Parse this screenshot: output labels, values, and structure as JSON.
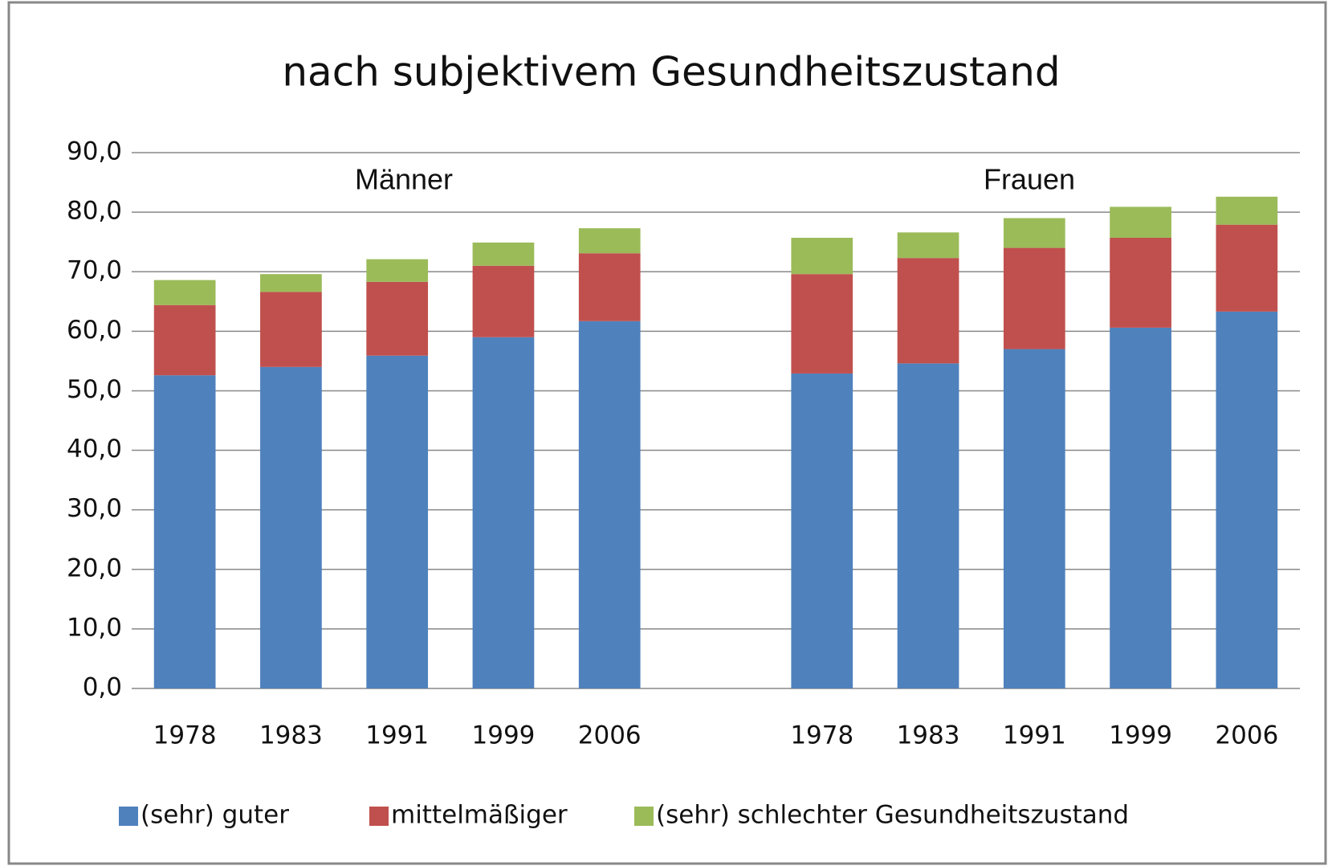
{
  "chart_data": {
    "type": "stacked_bar",
    "title": "nach subjektivem Gesundheitszustand",
    "annotations": [
      "Männer",
      "Frauen"
    ],
    "categories": [
      "1978",
      "1983",
      "1991",
      "1999",
      "2006",
      null,
      "1978",
      "1983",
      "1991",
      "1999",
      "2006"
    ],
    "series": [
      {
        "name": "(sehr) guter",
        "color": "#4f81bd",
        "values": [
          52.6,
          54.0,
          55.9,
          59.0,
          61.7,
          null,
          52.9,
          54.6,
          57.0,
          60.6,
          63.3
        ]
      },
      {
        "name": "mittelmäßiger",
        "color": "#c0504d",
        "values": [
          11.8,
          12.6,
          12.4,
          12.0,
          11.4,
          null,
          16.7,
          17.7,
          17.0,
          15.1,
          14.6
        ]
      },
      {
        "name": "(sehr) schlechter Gesundheitszustand",
        "color": "#9bbb59",
        "values": [
          4.2,
          3.0,
          3.8,
          3.9,
          4.2,
          null,
          6.1,
          4.3,
          5.0,
          5.2,
          4.7
        ]
      }
    ],
    "ylim": [
      0,
      90
    ],
    "yticks": [
      {
        "value": 0,
        "label": "0,0"
      },
      {
        "value": 10,
        "label": "10,0"
      },
      {
        "value": 20,
        "label": "20,0"
      },
      {
        "value": 30,
        "label": "30,0"
      },
      {
        "value": 40,
        "label": "40,0"
      },
      {
        "value": 50,
        "label": "50,0"
      },
      {
        "value": 60,
        "label": "60,0"
      },
      {
        "value": 70,
        "label": "70,0"
      },
      {
        "value": 80,
        "label": "80,0"
      },
      {
        "value": 90,
        "label": "90,0"
      }
    ],
    "grid": true,
    "legend": "bottom"
  }
}
